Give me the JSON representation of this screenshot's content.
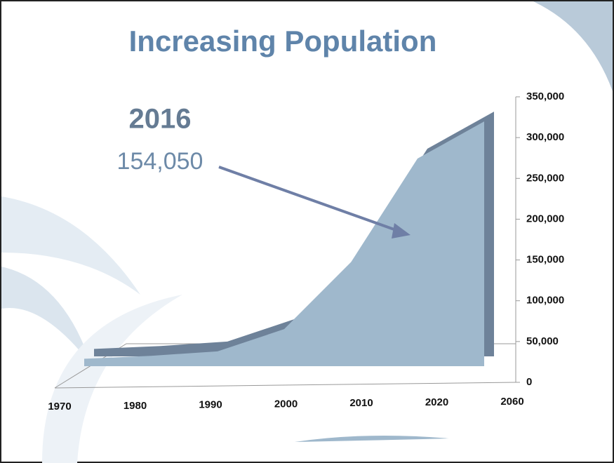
{
  "chart_data": {
    "type": "area",
    "title": "Increasing Population",
    "annotations": [
      "2016",
      "154,050"
    ],
    "categories": [
      "1970",
      "1980",
      "1990",
      "2000",
      "2010",
      "2020",
      "2060"
    ],
    "values": [
      10000,
      14000,
      20000,
      50000,
      140000,
      280000,
      330000
    ],
    "color": "#9fb8cc",
    "edge_color": "#6e8299",
    "ylim": [
      0,
      350000
    ],
    "yticks": [
      0,
      {
        "value": 50000,
        "label": "50,000"
      },
      {
        "value": 100000,
        "label": "100,000"
      },
      {
        "value": 150000,
        "label": "150,000"
      },
      {
        "value": 200000,
        "label": "200,000"
      },
      {
        "value": 250000,
        "label": "250,000"
      },
      {
        "value": 300000,
        "label": "300,000"
      },
      {
        "value": 350000,
        "label": "350,000"
      }
    ]
  }
}
